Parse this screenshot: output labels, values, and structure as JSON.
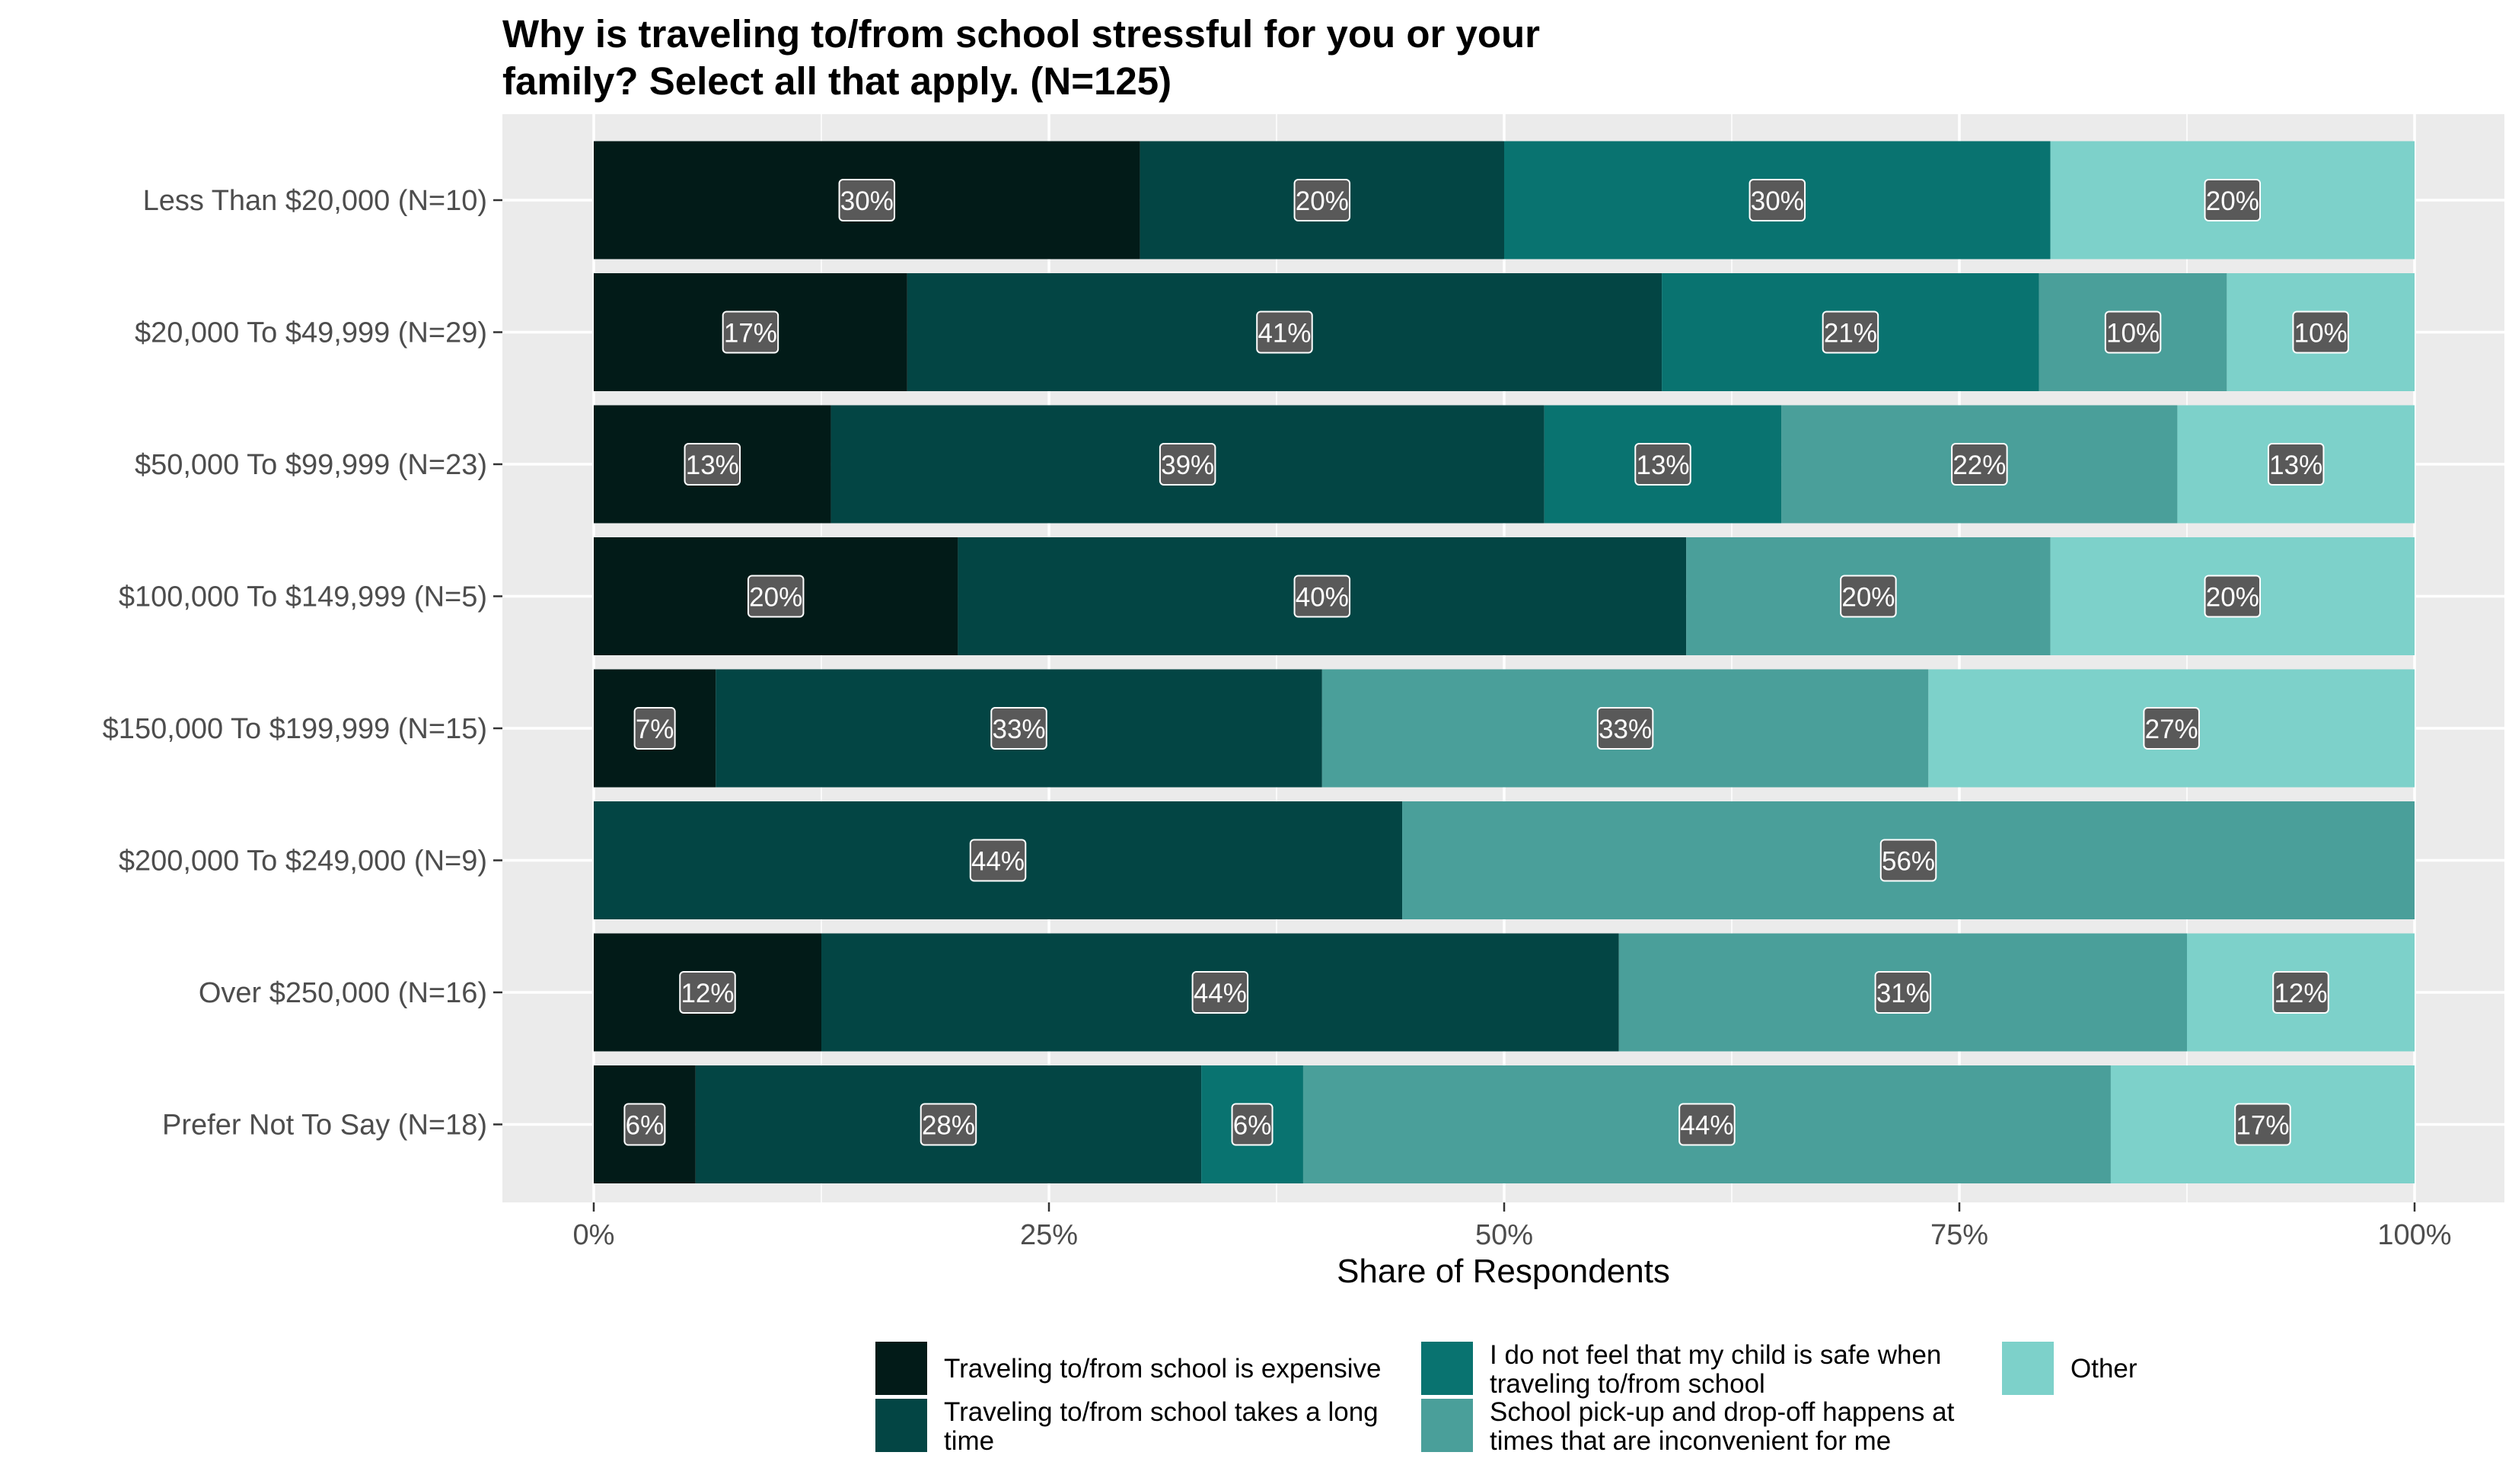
{
  "chart_data": {
    "type": "bar",
    "orientation": "horizontal",
    "stacked": true,
    "title": "Why is traveling to/from school stressful for you or your family? Select all that apply. (N=125)",
    "title_lines": [
      "Why is traveling to/from school stressful for you or your",
      "family? Select all that apply. (N=125)"
    ],
    "xlabel": "Share of Respondents",
    "ylabel": "",
    "xlim": [
      0,
      100
    ],
    "x_ticks": [
      "0%",
      "25%",
      "50%",
      "75%",
      "100%"
    ],
    "grid": true,
    "legend_position": "bottom",
    "categories": [
      "Less Than $20,000 (N=10)",
      "$20,000 To $49,999 (N=29)",
      "$50,000 To $99,999 (N=23)",
      "$100,000 To $149,999 (N=5)",
      "$150,000 To $199,999 (N=15)",
      "$200,000 To $249,000 (N=9)",
      "Over $250,000 (N=16)",
      "Prefer Not To Say (N=18)"
    ],
    "series": [
      {
        "name": "Traveling to/from school is expensive",
        "name_lines": [
          "Traveling to/from school is expensive"
        ],
        "color": "#021b18",
        "values": [
          30,
          17.2,
          13,
          20,
          6.7,
          0,
          12.5,
          5.6
        ],
        "labels": [
          "30%",
          "17%",
          "13%",
          "20%",
          "7%",
          "",
          "12%",
          "6%"
        ]
      },
      {
        "name": "Traveling to/from school takes a long time",
        "name_lines": [
          "Traveling to/from school takes a long",
          "time"
        ],
        "color": "#034544",
        "values": [
          20,
          41.4,
          39.1,
          40,
          33.3,
          44.4,
          43.8,
          27.8
        ],
        "labels": [
          "20%",
          "41%",
          "39%",
          "40%",
          "33%",
          "44%",
          "44%",
          "28%"
        ]
      },
      {
        "name": "I do not feel that my child is safe when traveling to/from school",
        "name_lines": [
          "I do not feel that my child is safe when",
          "traveling to/from school"
        ],
        "color": "#097370",
        "values": [
          30,
          20.7,
          13,
          0,
          0,
          0,
          0,
          5.6
        ],
        "labels": [
          "30%",
          "21%",
          "13%",
          "",
          "",
          "",
          "",
          "6%"
        ]
      },
      {
        "name": "School pick-up and drop-off happens at times that are inconvenient for me",
        "name_lines": [
          "School pick-up and drop-off happens at",
          "times that are inconvenient for me"
        ],
        "color": "#4a9f9a",
        "values": [
          0,
          10.3,
          21.7,
          20,
          33.3,
          55.6,
          31.2,
          44.4
        ],
        "labels": [
          "",
          "10%",
          "22%",
          "20%",
          "33%",
          "56%",
          "31%",
          "44%"
        ]
      },
      {
        "name": "Other",
        "name_lines": [
          "Other"
        ],
        "color": "#7dd1ca",
        "values": [
          20,
          10.3,
          13,
          20,
          26.7,
          0,
          12.5,
          16.7
        ],
        "labels": [
          "20%",
          "10%",
          "13%",
          "20%",
          "27%",
          "",
          "12%",
          "17%"
        ]
      }
    ]
  }
}
